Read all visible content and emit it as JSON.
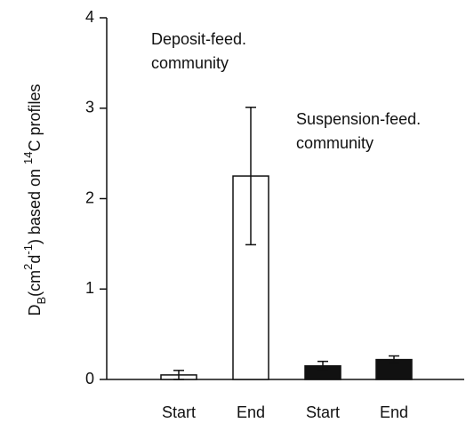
{
  "chart_data": {
    "type": "bar",
    "categories": [
      "Start",
      "End",
      "Start",
      "End"
    ],
    "values": [
      0.05,
      2.25,
      0.15,
      0.22
    ],
    "errors": [
      0.05,
      0.76,
      0.05,
      0.04
    ],
    "colors": [
      "#ffffff",
      "#ffffff",
      "#111111",
      "#111111"
    ],
    "ylim": [
      0,
      4
    ],
    "yticks": [
      0,
      1,
      2,
      3,
      4
    ],
    "ylabel": [
      {
        "text": "D"
      },
      {
        "text": "B",
        "script": "sub"
      },
      {
        "text": "(cm"
      },
      {
        "text": "2",
        "script": "super"
      },
      {
        "text": "d"
      },
      {
        "text": "-1",
        "script": "super"
      },
      {
        "text": ") based on  "
      },
      {
        "text": "14",
        "script": "super"
      },
      {
        "text": "C profiles"
      }
    ],
    "annotations": [
      [
        "Deposit-feed.",
        "community"
      ],
      [
        "Suspension-feed.",
        "community"
      ]
    ]
  }
}
